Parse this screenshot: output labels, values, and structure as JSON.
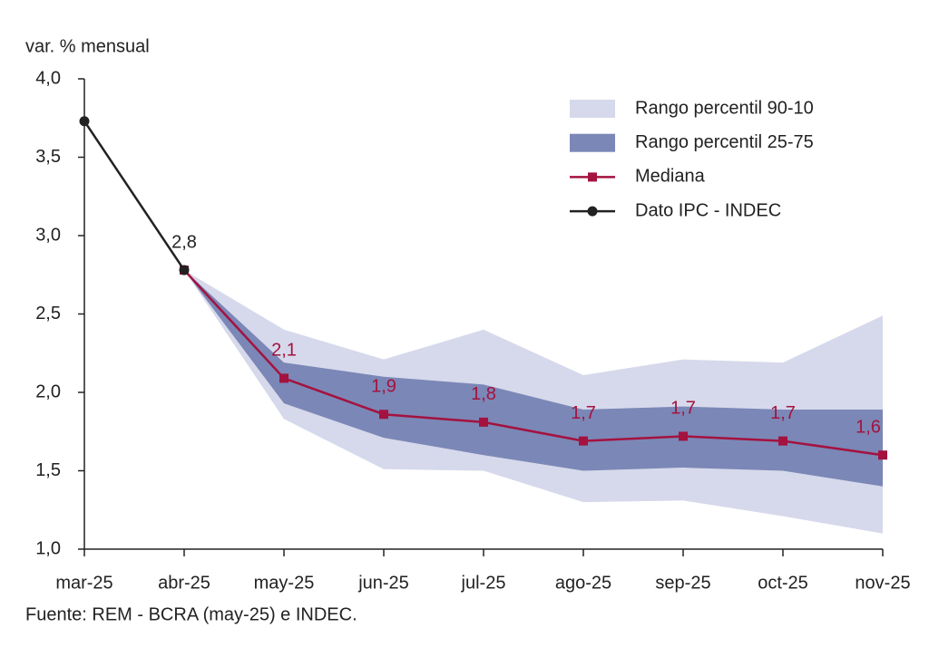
{
  "chart_data": {
    "type": "line",
    "title": "var. % mensual",
    "source": "Fuente: REM - BCRA (may-25) e INDEC.",
    "categories": [
      "mar-25",
      "abr-25",
      "may-25",
      "jun-25",
      "jul-25",
      "ago-25",
      "sep-25",
      "oct-25",
      "nov-25"
    ],
    "ylim": [
      1.0,
      4.0
    ],
    "yticks": [
      {
        "value": 1.0,
        "label": "1,0"
      },
      {
        "value": 1.5,
        "label": "1,5"
      },
      {
        "value": 2.0,
        "label": "2,0"
      },
      {
        "value": 2.5,
        "label": "2,5"
      },
      {
        "value": 3.0,
        "label": "3,0"
      },
      {
        "value": 3.5,
        "label": "3,5"
      },
      {
        "value": 4.0,
        "label": "4,0"
      }
    ],
    "legend": "upper right",
    "series": [
      {
        "name": "Rango percentil 90-10",
        "kind": "band",
        "color": "#d6d9eb",
        "high": [
          null,
          2.78,
          2.4,
          2.21,
          2.4,
          2.11,
          2.21,
          2.19,
          2.49
        ],
        "low": [
          null,
          2.78,
          1.83,
          1.51,
          1.5,
          1.3,
          1.31,
          1.21,
          1.1
        ]
      },
      {
        "name": "Rango percentil 25-75",
        "kind": "band",
        "color": "#7b87b6",
        "high": [
          null,
          2.78,
          2.19,
          2.1,
          2.05,
          1.89,
          1.91,
          1.89,
          1.89
        ],
        "low": [
          null,
          2.78,
          1.93,
          1.71,
          1.6,
          1.5,
          1.52,
          1.5,
          1.4
        ]
      },
      {
        "name": "Mediana",
        "kind": "line",
        "marker": "square",
        "color": "#a4123f",
        "values": [
          null,
          2.78,
          2.09,
          1.86,
          1.81,
          1.69,
          1.72,
          1.69,
          1.6
        ],
        "value_labels": [
          null,
          null,
          "2,1",
          "1,9",
          "1,8",
          "1,7",
          "1,7",
          "1,7",
          "1,6"
        ]
      },
      {
        "name": "Dato IPC - INDEC",
        "kind": "line",
        "marker": "circle",
        "color": "#222222",
        "values": [
          3.73,
          2.78,
          null,
          null,
          null,
          null,
          null,
          null,
          null
        ],
        "value_labels": [
          null,
          "2,8",
          null,
          null,
          null,
          null,
          null,
          null,
          null
        ]
      }
    ]
  }
}
